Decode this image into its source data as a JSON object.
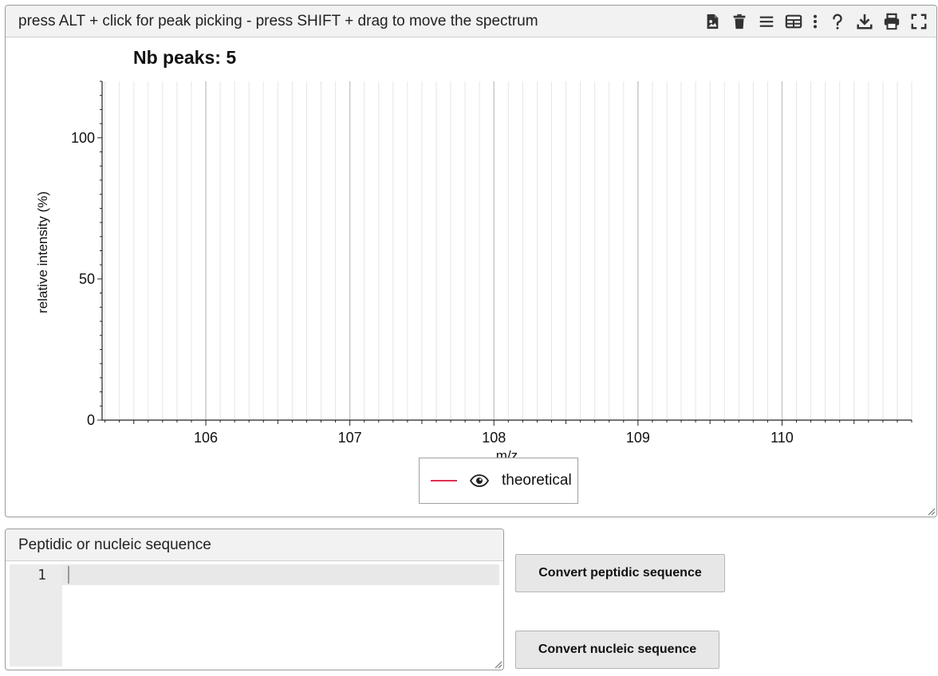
{
  "spectrum_panel": {
    "title": "press ALT + click for peak picking - press SHIFT + drag to move the spectrum",
    "toolbar": [
      {
        "icon": "export-image-icon"
      },
      {
        "icon": "trash-icon"
      },
      {
        "icon": "list-icon"
      },
      {
        "icon": "table-icon"
      },
      {
        "icon": "more-vertical-icon"
      },
      {
        "icon": "help-icon"
      },
      {
        "icon": "download-icon"
      },
      {
        "icon": "print-icon"
      },
      {
        "icon": "fullscreen-icon"
      }
    ]
  },
  "chart_data": {
    "type": "line",
    "title": "Nb peaks: 5",
    "xlabel": "m/z",
    "ylabel": "relative intensity (%)",
    "xlim": [
      105.28,
      110.9
    ],
    "ylim": [
      0,
      120
    ],
    "x_ticks": [
      106,
      107,
      108,
      109,
      110
    ],
    "y_ticks": [
      0,
      50,
      100
    ],
    "grid": true,
    "series": [
      {
        "name": "theoretical",
        "color": "#e03050",
        "x": [],
        "y": []
      }
    ],
    "legend": {
      "position": "bottom-center",
      "label": "theoretical"
    }
  },
  "sequence_panel": {
    "title": "Peptidic or nucleic sequence",
    "line_number": "1",
    "value": ""
  },
  "buttons": {
    "convert_peptidic": "Convert peptidic sequence",
    "convert_nucleic": "Convert nucleic sequence"
  }
}
